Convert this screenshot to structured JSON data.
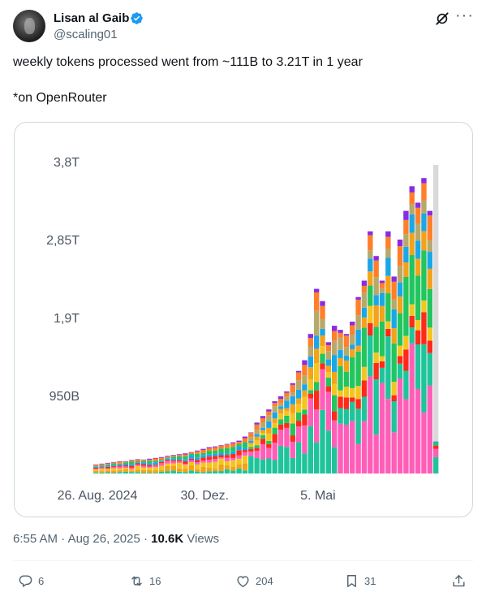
{
  "author": {
    "name": "Lisan al Gaib",
    "handle": "@scaling01"
  },
  "tweet": {
    "text": "weekly tokens processed went from ~111B to 3.21T in 1 year\n\n*on OpenRouter",
    "time": "6:55 AM",
    "date": "Aug 26, 2025",
    "views_count": "10.6K",
    "views_label": "Views"
  },
  "actions": {
    "reply_count": "6",
    "retweet_count": "16",
    "like_count": "204",
    "bookmark_count": "31"
  },
  "icons": [
    "verified-badge-icon",
    "grok-icon",
    "more-icon",
    "reply-icon",
    "retweet-icon",
    "like-icon",
    "bookmark-icon",
    "share-icon"
  ],
  "colors": {
    "accent": "#1d9bf0",
    "muted": "#536471",
    "border": "#cfd9de"
  },
  "chart_data": {
    "type": "bar",
    "stacked": true,
    "title": "",
    "xlabel": "",
    "ylabel": "",
    "ylim": [
      0,
      3800000000000
    ],
    "y_ticks": [
      {
        "label": "950B",
        "value": 950000000000
      },
      {
        "label": "1,9T",
        "value": 1900000000000
      },
      {
        "label": "2,85T",
        "value": 2850000000000
      },
      {
        "label": "3,8T",
        "value": 3800000000000
      }
    ],
    "x_ticks": [
      {
        "label": "26. Aug. 2024",
        "index": 0
      },
      {
        "label": "30. Dez.",
        "index": 18
      },
      {
        "label": "5. Mai",
        "index": 37
      }
    ],
    "grid": false,
    "legend": "none",
    "week_totals": [
      110,
      120,
      130,
      140,
      150,
      150,
      165,
      175,
      170,
      180,
      190,
      200,
      215,
      225,
      235,
      245,
      260,
      280,
      300,
      320,
      330,
      345,
      360,
      380,
      400,
      450,
      500,
      620,
      700,
      780,
      880,
      940,
      1000,
      1100,
      1250,
      1380,
      1700,
      2250,
      2100,
      1600,
      1800,
      1750,
      1700,
      1850,
      2150,
      2350,
      2950,
      2650,
      2350,
      2950,
      2400,
      2850,
      3200,
      3500,
      3300,
      3600,
      3200
    ],
    "segment_colors": [
      "#1fc49a",
      "#ff5eb8",
      "#ff2a1a",
      "#f3a21a",
      "#f5c51f",
      "#22c55e",
      "#1aa7e8",
      "#b7a96a",
      "#8a2be2",
      "#ff7f2a"
    ],
    "final_partial_week_visible": true
  }
}
